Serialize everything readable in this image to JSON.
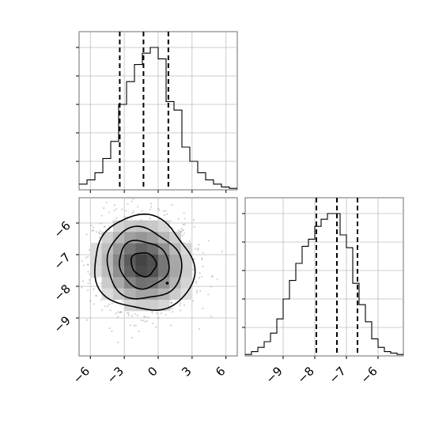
{
  "chart_data": {
    "type": "corner",
    "grid": true,
    "title": "",
    "parameters": [
      {
        "name": "",
        "range": [
          -7,
          7
        ],
        "ticks": [
          -6,
          -3,
          0,
          3,
          6
        ],
        "tick_labels": [
          "−6",
          "−3",
          "0",
          "3",
          "6"
        ]
      },
      {
        "name": "",
        "range": [
          -10.2,
          -5.2
        ],
        "ticks": [
          -9,
          -8,
          -7,
          -6
        ],
        "tick_labels": [
          "−9",
          "−8",
          "−7",
          "−6"
        ]
      }
    ],
    "histograms": [
      {
        "parameter": 0,
        "bin_edges": [
          -7,
          -6.3,
          -5.6,
          -4.9,
          -4.2,
          -3.5,
          -2.8,
          -2.1,
          -1.4,
          -0.7,
          0,
          0.7,
          1.4,
          2.1,
          2.8,
          3.5,
          4.2,
          4.9,
          5.6,
          6.3,
          7
        ],
        "counts": [
          0.04,
          0.07,
          0.12,
          0.22,
          0.34,
          0.6,
          0.76,
          0.88,
          0.96,
          1.0,
          0.92,
          0.62,
          0.56,
          0.3,
          0.2,
          0.12,
          0.07,
          0.04,
          0.02,
          0.01
        ],
        "quantiles": [
          -3.4,
          -1.3,
          0.9
        ]
      },
      {
        "parameter": 1,
        "bin_edges": [
          -10.2,
          -10.0,
          -9.8,
          -9.6,
          -9.4,
          -9.2,
          -9.0,
          -8.8,
          -8.6,
          -8.4,
          -8.2,
          -8.0,
          -7.8,
          -7.6,
          -7.4,
          -7.2,
          -7.0,
          -6.8,
          -6.6,
          -6.4,
          -6.2,
          -6.0,
          -5.8,
          -5.6,
          -5.4,
          -5.2
        ],
        "counts": [
          0.01,
          0.03,
          0.06,
          0.1,
          0.16,
          0.26,
          0.4,
          0.53,
          0.65,
          0.77,
          0.82,
          0.91,
          0.96,
          1.0,
          1.0,
          0.85,
          0.76,
          0.51,
          0.36,
          0.24,
          0.12,
          0.06,
          0.03,
          0.02,
          0.01
        ],
        "quantiles": [
          -7.95,
          -7.3,
          -6.65
        ]
      }
    ],
    "joint": {
      "x_parameter": 0,
      "y_parameter": 1,
      "mean": [
        -1.3,
        -7.3
      ],
      "sigma": [
        2.2,
        0.75
      ],
      "correlation": -0.08,
      "contour_levels_sigma": [
        0.5,
        1.0,
        1.5,
        2.0
      ],
      "sample_count": 1400,
      "highlight_point": [
        0.8,
        -7.9
      ]
    }
  }
}
